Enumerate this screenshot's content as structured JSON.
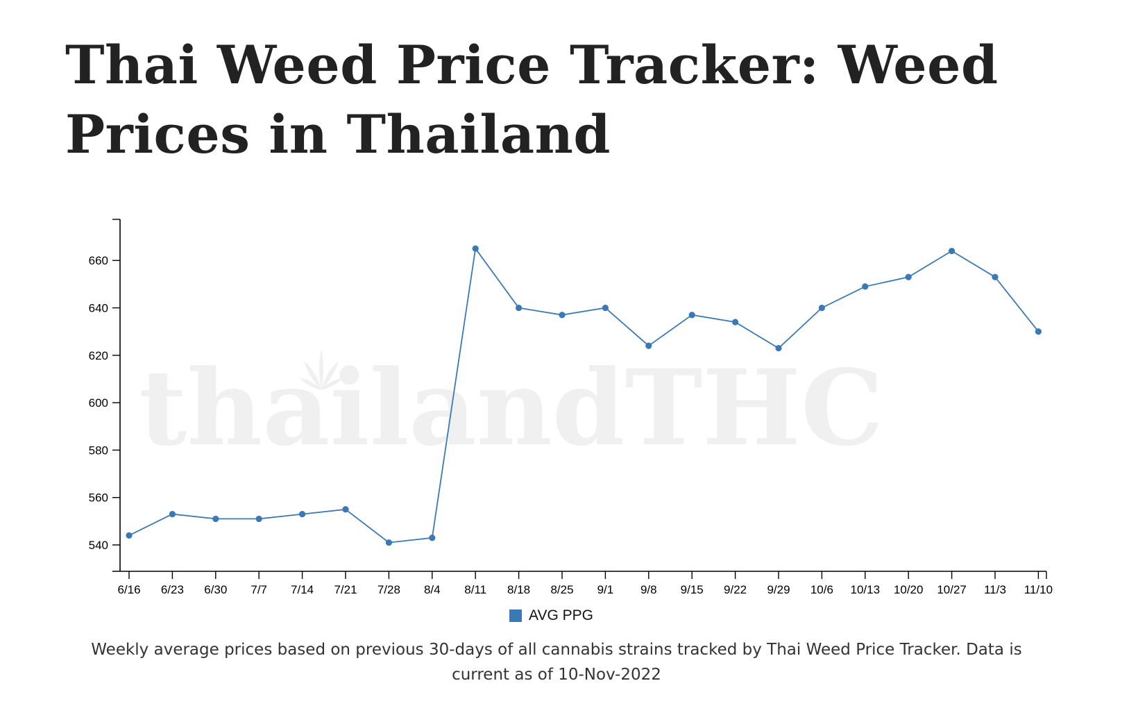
{
  "page": {
    "title": "Thai Weed Price Tracker: Weed Prices in Thailand",
    "caption": "Weekly average prices based on previous 30-days of all cannabis strains tracked by Thai Weed Price Tracker. Data is current as of 10-Nov-2022",
    "watermark": "thailandTHC"
  },
  "colors": {
    "series": "#3a79b5",
    "watermark": "#f1f0f1",
    "title": "#222222"
  },
  "chart_data": {
    "type": "line",
    "title": "",
    "xlabel": "",
    "ylabel": "",
    "categories": [
      "6/16",
      "6/23",
      "6/30",
      "7/7",
      "7/14",
      "7/21",
      "7/28",
      "8/4",
      "8/11",
      "8/18",
      "8/25",
      "9/1",
      "9/8",
      "9/15",
      "9/22",
      "9/29",
      "10/6",
      "10/13",
      "10/20",
      "10/27",
      "11/3",
      "11/10"
    ],
    "series": [
      {
        "name": "AVG PPG",
        "values": [
          544,
          553,
          551,
          551,
          553,
          555,
          541,
          543,
          665,
          640,
          637,
          640,
          624,
          637,
          634,
          623,
          640,
          649,
          653,
          664,
          653,
          630
        ]
      }
    ],
    "yticks": [
      540,
      560,
      580,
      600,
      620,
      640,
      660
    ],
    "ylim": [
      528,
      677
    ],
    "grid": false,
    "legend": "bottom-center"
  }
}
